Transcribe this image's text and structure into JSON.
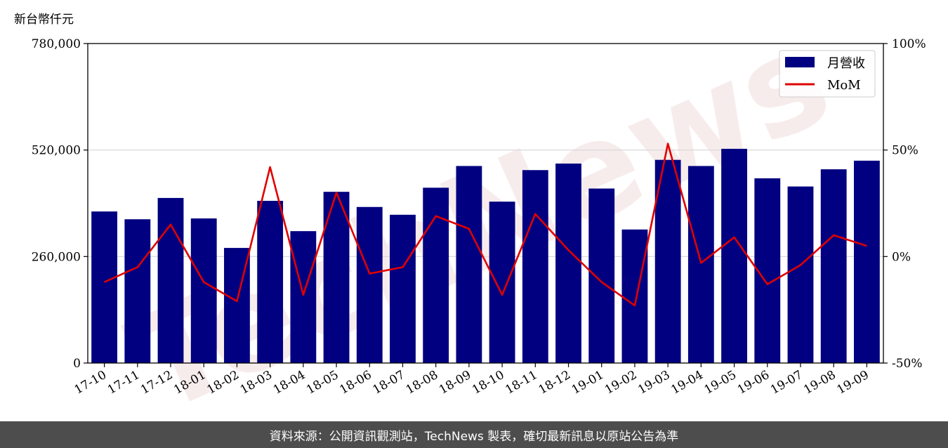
{
  "chart_data": {
    "type": "bar",
    "unit_label": "新台幣仟元",
    "categories": [
      "17-10",
      "17-11",
      "17-12",
      "18-01",
      "18-02",
      "18-03",
      "18-04",
      "18-05",
      "18-06",
      "18-07",
      "18-08",
      "18-09",
      "18-10",
      "18-11",
      "18-12",
      "19-01",
      "19-02",
      "19-03",
      "19-04",
      "19-05",
      "19-06",
      "19-07",
      "19-08",
      "19-09"
    ],
    "series": [
      {
        "name": "月營收",
        "type": "bar",
        "axis": "left",
        "color": "#000080",
        "values": [
          370000,
          351000,
          403000,
          353000,
          281000,
          396000,
          322000,
          418000,
          381000,
          362000,
          428000,
          481000,
          394000,
          471000,
          487000,
          426000,
          326000,
          496000,
          481000,
          523000,
          451000,
          431000,
          473000,
          494000
        ]
      },
      {
        "name": "MoM",
        "type": "line",
        "axis": "right",
        "color": "#e00000",
        "values": [
          -12,
          -5,
          15,
          -12,
          -21,
          42,
          -18,
          30,
          -8,
          -5,
          19,
          13,
          -18,
          20,
          3,
          -12,
          -23,
          53,
          -3,
          9,
          -13,
          -4,
          10,
          5
        ]
      }
    ],
    "ylim": [
      0,
      780000
    ],
    "yticks": [
      0,
      260000,
      520000,
      780000
    ],
    "ytick_labels": [
      "0",
      "260,000",
      "520,000",
      "780,000"
    ],
    "y2lim": [
      -50,
      100
    ],
    "y2ticks": [
      -50,
      0,
      50,
      100
    ],
    "y2tick_labels": [
      "-50%",
      "0%",
      "50%",
      "100%"
    ],
    "grid": "horizontal",
    "legend_position": "top-right"
  },
  "watermark": "TechNews",
  "footer": {
    "source_text": "資料來源：公開資訊觀測站，TechNews 製表，確切最新訊息以原站公告為準"
  }
}
